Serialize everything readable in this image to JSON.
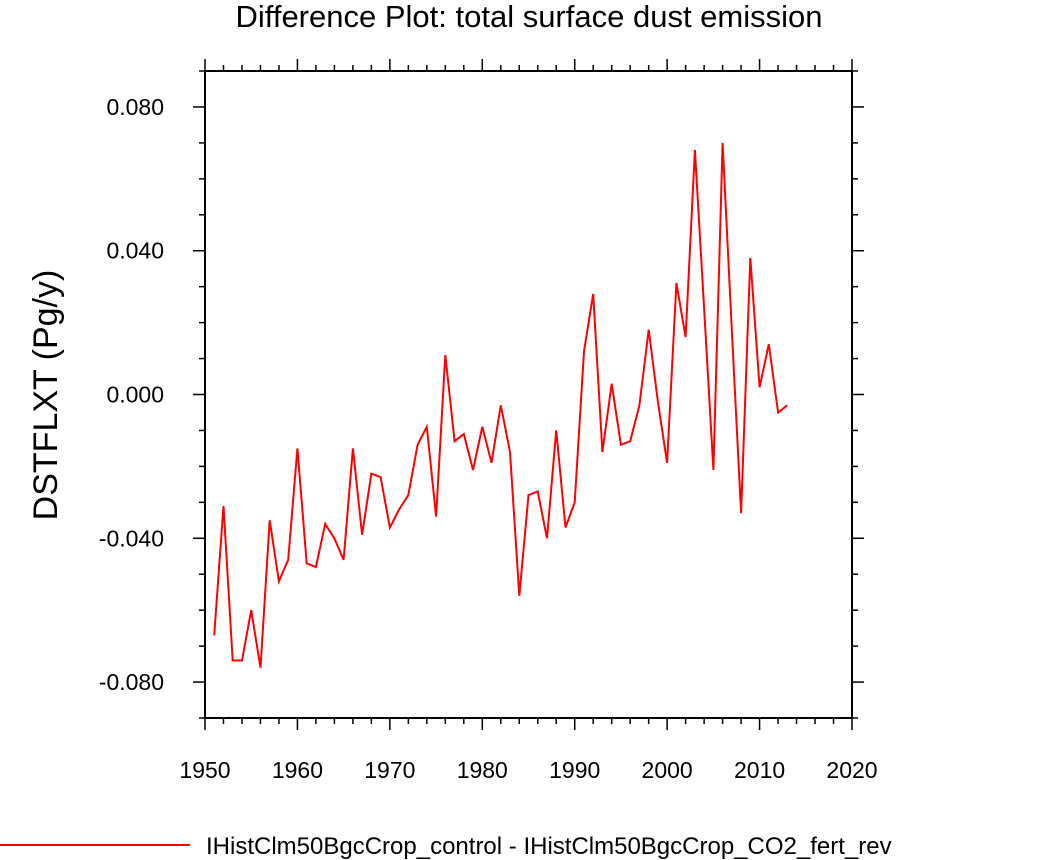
{
  "chart_data": {
    "type": "line",
    "title": "Difference Plot: total surface dust emission",
    "ylabel": "DSTFLXT  (Pg/y)",
    "xlabel": "",
    "xlim": [
      1950,
      2020
    ],
    "ylim": [
      -0.09,
      0.09
    ],
    "xticks": [
      1950,
      1960,
      1970,
      1980,
      1990,
      2000,
      2010,
      2020
    ],
    "xtick_labels": [
      "1950",
      "1960",
      "1970",
      "1980",
      "1990",
      "2000",
      "2010",
      "2020"
    ],
    "yticks": [
      0.08,
      0.04,
      0.0,
      -0.04,
      -0.08
    ],
    "ytick_labels": [
      "0.080",
      "0.040",
      "0.000",
      "-0.040",
      "-0.080"
    ],
    "grid": false,
    "legend_position": "bottom",
    "series": [
      {
        "name": "IHistClm50BgcCrop_control - IHistClm50BgcCrop_CO2_fert_rev",
        "color": "#ff0000",
        "x": [
          1951,
          1952,
          1953,
          1954,
          1955,
          1956,
          1957,
          1958,
          1959,
          1960,
          1961,
          1962,
          1963,
          1964,
          1965,
          1966,
          1967,
          1968,
          1969,
          1970,
          1971,
          1972,
          1973,
          1974,
          1975,
          1976,
          1977,
          1978,
          1979,
          1980,
          1981,
          1982,
          1983,
          1984,
          1985,
          1986,
          1987,
          1988,
          1989,
          1990,
          1991,
          1992,
          1993,
          1994,
          1995,
          1996,
          1997,
          1998,
          1999,
          2000,
          2001,
          2002,
          2003,
          2004,
          2005,
          2006,
          2007,
          2008,
          2009,
          2010,
          2011,
          2012,
          2013
        ],
        "y": [
          -0.067,
          -0.031,
          -0.074,
          -0.074,
          -0.06,
          -0.076,
          -0.035,
          -0.052,
          -0.046,
          -0.015,
          -0.047,
          -0.048,
          -0.036,
          -0.04,
          -0.046,
          -0.015,
          -0.039,
          -0.022,
          -0.023,
          -0.037,
          -0.032,
          -0.028,
          -0.014,
          -0.009,
          -0.034,
          0.011,
          -0.013,
          -0.011,
          -0.021,
          -0.009,
          -0.019,
          -0.003,
          -0.016,
          -0.056,
          -0.028,
          -0.027,
          -0.04,
          -0.01,
          -0.037,
          -0.03,
          0.012,
          0.028,
          -0.016,
          0.003,
          -0.014,
          -0.013,
          -0.003,
          0.018,
          -0.002,
          -0.019,
          0.031,
          0.016,
          0.068,
          0.024,
          -0.021,
          0.07,
          0.018,
          -0.033,
          0.038,
          0.002,
          0.014,
          -0.005,
          -0.003
        ]
      }
    ]
  }
}
